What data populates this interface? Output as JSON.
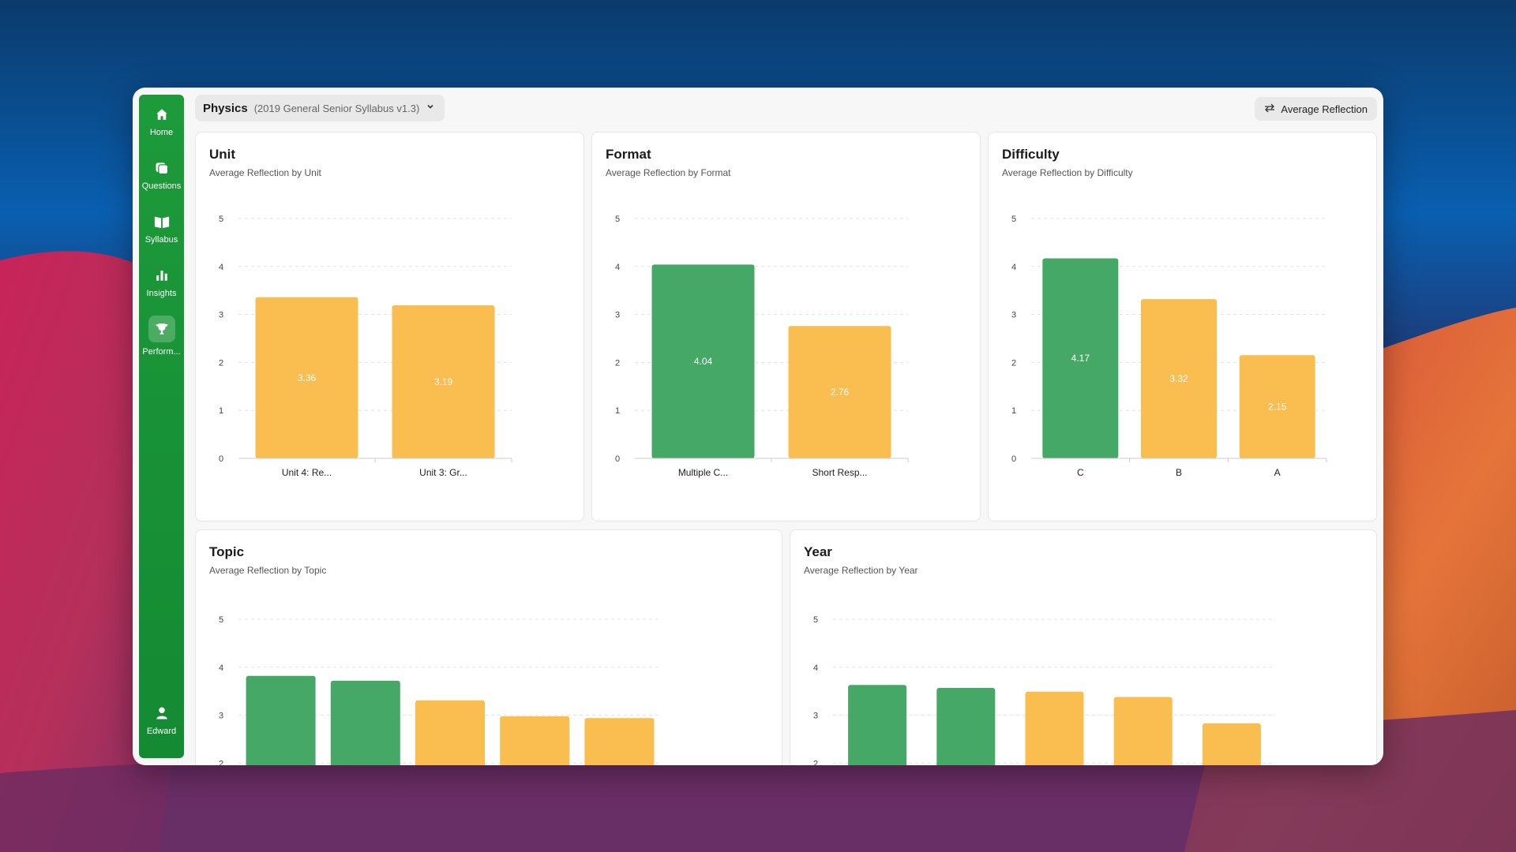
{
  "colors": {
    "green": "#46a866",
    "orange": "#f9bd50",
    "sidebar": "#1a9438"
  },
  "sidebar": {
    "items": [
      {
        "label": "Home",
        "icon": "home-icon"
      },
      {
        "label": "Questions",
        "icon": "questions-icon"
      },
      {
        "label": "Syllabus",
        "icon": "book-icon"
      },
      {
        "label": "Insights",
        "icon": "bar-chart-icon"
      },
      {
        "label": "Perform...",
        "icon": "trophy-icon"
      }
    ],
    "user": {
      "label": "Edward",
      "icon": "user-icon"
    }
  },
  "topbar": {
    "subject": "Physics",
    "syllabus": "(2019 General Senior Syllabus v1.3)",
    "metric_button": "Average Reflection"
  },
  "cards": {
    "unit": {
      "title": "Unit",
      "subtitle": "Average Reflection by Unit"
    },
    "format": {
      "title": "Format",
      "subtitle": "Average Reflection by Format"
    },
    "difficulty": {
      "title": "Difficulty",
      "subtitle": "Average Reflection by Difficulty"
    },
    "topic": {
      "title": "Topic",
      "subtitle": "Average Reflection by Topic"
    },
    "year": {
      "title": "Year",
      "subtitle": "Average Reflection by Year"
    }
  },
  "chart_data": [
    {
      "id": "unit",
      "type": "bar",
      "ylim": [
        0,
        5
      ],
      "yticks": [
        0,
        1,
        2,
        3,
        4,
        5
      ],
      "categories": [
        "Unit 4: Re...",
        "Unit 3: Gr..."
      ],
      "values": [
        3.36,
        3.19
      ],
      "labels": [
        "3.36",
        "3.19"
      ],
      "colors": [
        "#f9bd50",
        "#f9bd50"
      ]
    },
    {
      "id": "format",
      "type": "bar",
      "ylim": [
        0,
        5
      ],
      "yticks": [
        0,
        1,
        2,
        3,
        4,
        5
      ],
      "categories": [
        "Multiple C...",
        "Short Resp..."
      ],
      "values": [
        4.04,
        2.76
      ],
      "labels": [
        "4.04",
        "2.76"
      ],
      "colors": [
        "#46a866",
        "#f9bd50"
      ]
    },
    {
      "id": "difficulty",
      "type": "bar",
      "ylim": [
        0,
        5
      ],
      "yticks": [
        0,
        1,
        2,
        3,
        4,
        5
      ],
      "categories": [
        "C",
        "B",
        "A"
      ],
      "values": [
        4.17,
        3.32,
        2.15
      ],
      "labels": [
        "4.17",
        "3.32",
        "2.15"
      ],
      "colors": [
        "#46a866",
        "#f9bd50",
        "#f9bd50"
      ]
    },
    {
      "id": "topic",
      "type": "bar",
      "ylim": [
        0,
        5
      ],
      "yticks": [
        2,
        3,
        4,
        5
      ],
      "categories": [
        "",
        "",
        "",
        "",
        ""
      ],
      "values": [
        3.82,
        3.72,
        3.31,
        2.98,
        2.94
      ],
      "labels": [
        "",
        "",
        "",
        "",
        ""
      ],
      "colors": [
        "#46a866",
        "#46a866",
        "#f9bd50",
        "#f9bd50",
        "#f9bd50"
      ]
    },
    {
      "id": "year",
      "type": "bar",
      "ylim": [
        0,
        5
      ],
      "yticks": [
        2,
        3,
        4,
        5
      ],
      "categories": [
        "",
        "",
        "",
        "",
        ""
      ],
      "values": [
        3.63,
        3.57,
        3.49,
        3.38,
        2.83
      ],
      "labels": [
        "",
        "",
        "",
        "",
        ""
      ],
      "colors": [
        "#46a866",
        "#46a866",
        "#f9bd50",
        "#f9bd50",
        "#f9bd50"
      ]
    }
  ]
}
